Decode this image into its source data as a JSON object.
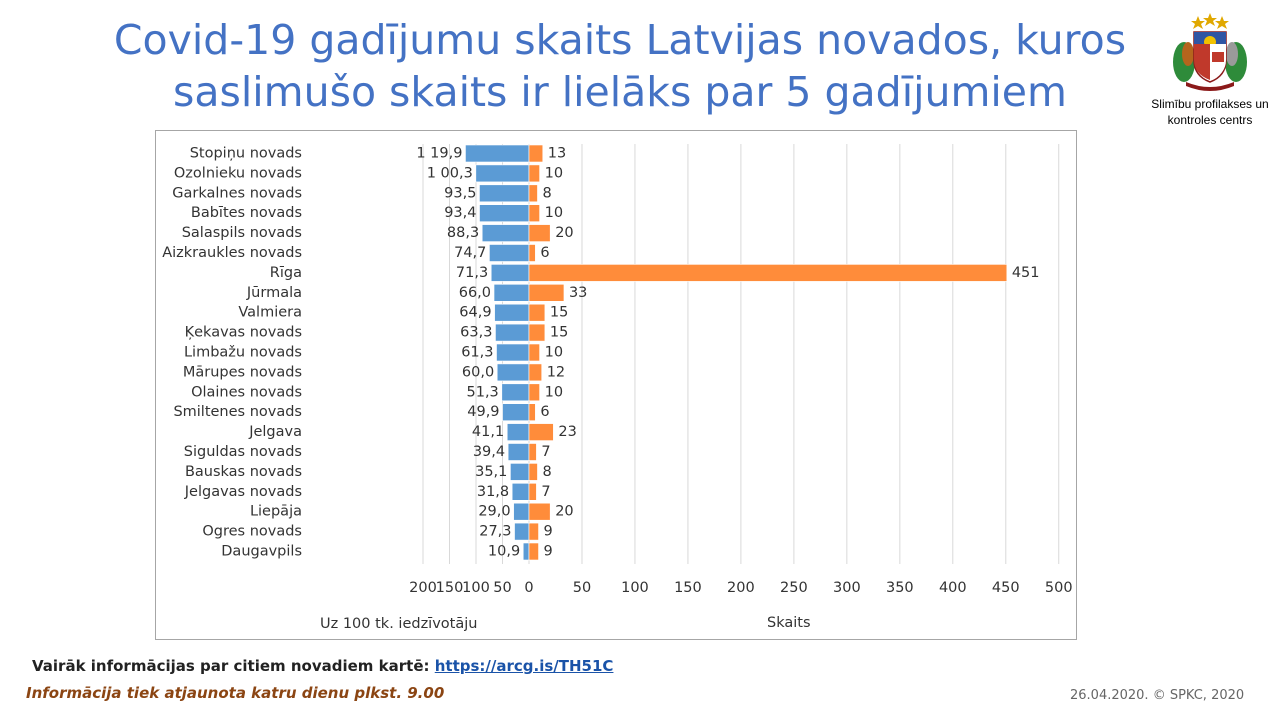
{
  "title": {
    "line1": "Covid-19 gadījumu skaits Latvijas novados, kuros",
    "line2": "saslimušo skaits ir lielāks par 5 gadījumiem"
  },
  "logo": {
    "line1": "Slimību profilakses un",
    "line2": "kontroles centrs",
    "icon": "latvian-coat-of-arms-icon"
  },
  "chart_data": {
    "type": "bar",
    "orientation": "horizontal",
    "categories": [
      "Stopiņu novads",
      "Ozolnieku novads",
      "Garkalnes novads",
      "Babītes novads",
      "Salaspils novads",
      "Aizkraukles novads",
      "Rīga",
      "Jūrmala",
      "Valmiera",
      "Ķekavas novads",
      "Limbažu novads",
      "Mārupes novads",
      "Olaines novads",
      "Smiltenes novads",
      "Jelgava",
      "Siguldas novads",
      "Bauskas novads",
      "Jelgavas novads",
      "Liepāja",
      "Ogres novads",
      "Daugavpils"
    ],
    "series": [
      {
        "name": "Uz 100 tk. iedzīvotāju",
        "color": "#5B9BD5",
        "values": [
          119.9,
          100.3,
          93.5,
          93.4,
          88.3,
          74.7,
          71.3,
          66.0,
          64.9,
          63.3,
          61.3,
          60.0,
          51.3,
          49.9,
          41.1,
          39.4,
          35.1,
          31.8,
          29.0,
          27.3,
          10.9
        ],
        "labels": [
          "1 19,9",
          "1 00,3",
          "93,5",
          "93,4",
          "88,3",
          "74,7",
          "71,3",
          "66,0",
          "64,9",
          "63,3",
          "61,3",
          "60,0",
          "51,3",
          "49,9",
          "41,1",
          "39,4",
          "35,1",
          "31,8",
          "29,0",
          "27,3",
          "10,9"
        ],
        "xlim": [
          0,
          200
        ],
        "ticks": [
          "200",
          "150",
          "100",
          "50"
        ]
      },
      {
        "name": "Skaits",
        "color": "#FF8C3A",
        "values": [
          13,
          10,
          8,
          10,
          20,
          6,
          451,
          33,
          15,
          15,
          10,
          12,
          10,
          6,
          23,
          7,
          8,
          7,
          20,
          9,
          9
        ],
        "labels": [
          "13",
          "10",
          "8",
          "10",
          "20",
          "6",
          "451",
          "33",
          "15",
          "15",
          "10",
          "12",
          "10",
          "6",
          "23",
          "7",
          "8",
          "7",
          "20",
          "9",
          "9"
        ],
        "xlim": [
          0,
          500
        ],
        "ticks": [
          "0",
          "50",
          "100",
          "150",
          "200",
          "250",
          "300",
          "350",
          "400",
          "450",
          "500"
        ]
      }
    ],
    "grid": true,
    "border_color": "#a6a6a6",
    "grid_color": "#d9d9d9"
  },
  "footer": {
    "info_prefix": "Vairāk informācijas par citiem novadiem kartē:",
    "link_text": "https://arcg.is/TH51C",
    "update_note": "Informācija tiek atjaunota katru dienu plkst. 9.00",
    "copyright": "26.04.2020. © SPKC, 2020"
  }
}
